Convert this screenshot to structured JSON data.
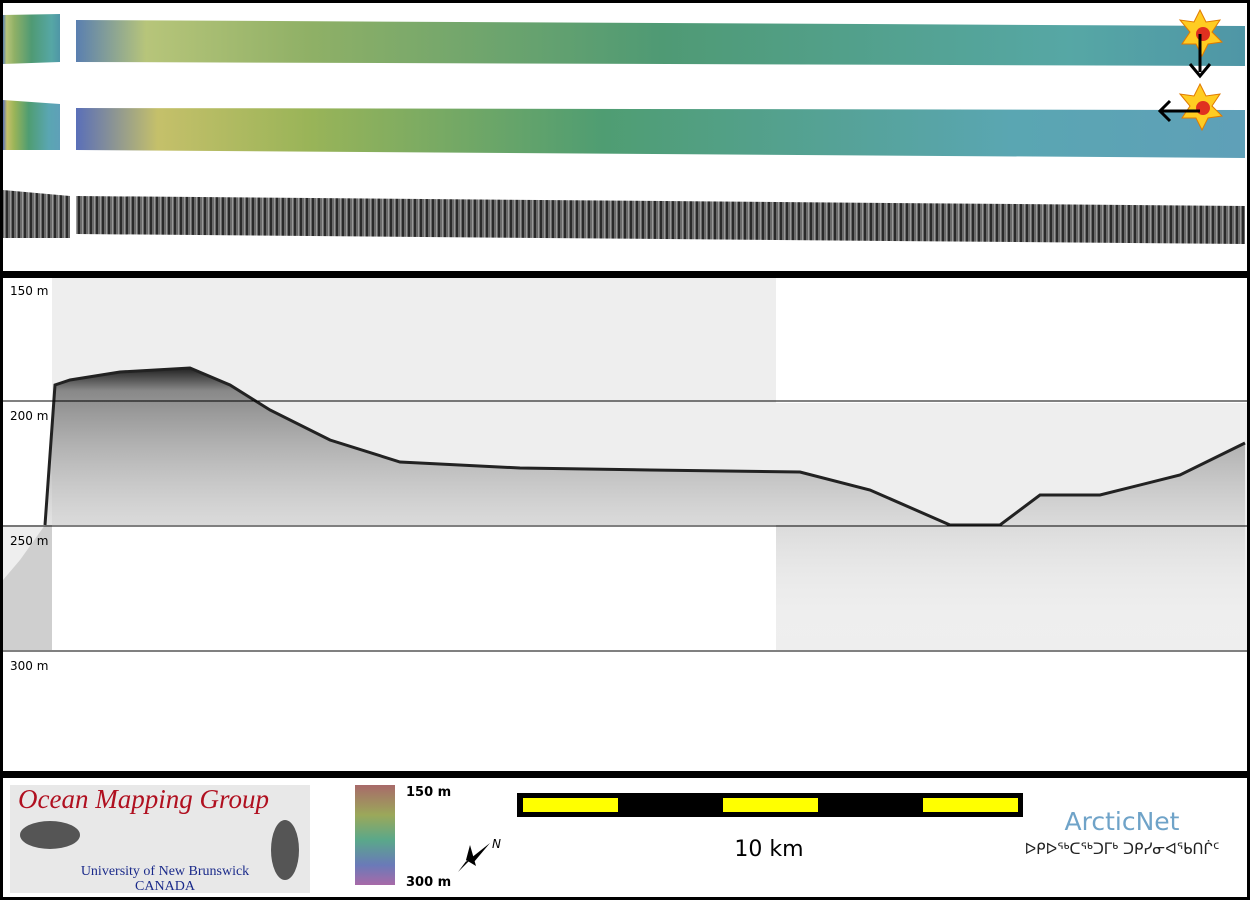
{
  "profile": {
    "depth_labels": [
      "150 m",
      "200 m",
      "250 m",
      "300 m"
    ]
  },
  "footer": {
    "logo": {
      "title": "Ocean Mapping Group",
      "university": "University of New Brunswick",
      "country": "CANADA"
    },
    "colorbar": {
      "top_label": "150 m",
      "bottom_label": "300 m"
    },
    "north_label": "N",
    "scale_label": "10 km",
    "partner": {
      "name": "ArcticNet",
      "syllabics": "ᐅᑭᐅᖅᑕᖅᑐᒥᒃ ᑐᑭᓯᓂᐊᖃᑎᒌᑦ"
    }
  }
}
